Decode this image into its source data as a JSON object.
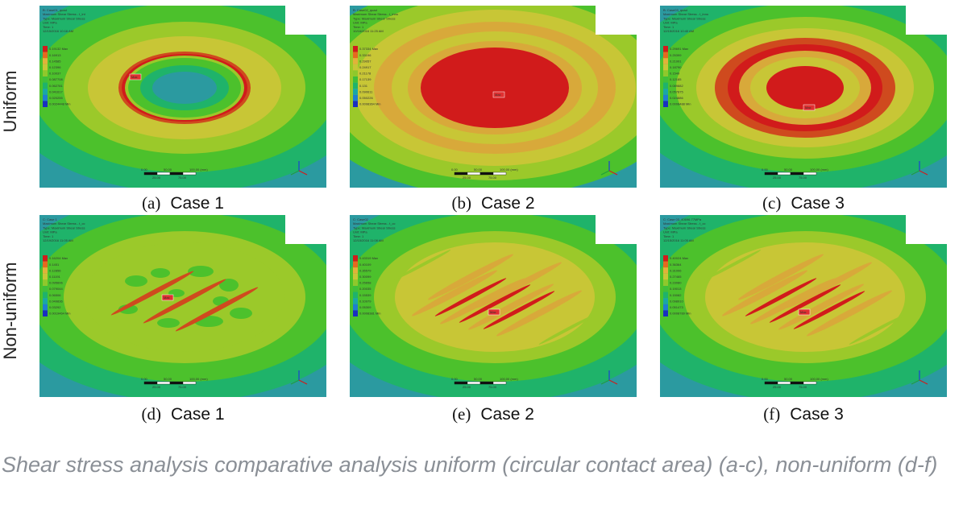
{
  "row_labels": {
    "top": "Uniform",
    "bottom": "Non-uniform"
  },
  "panels": [
    {
      "id": "a",
      "letter": "(a)",
      "case": "Case 1",
      "header": [
        "B: Case01_quad",
        "Maximum Shear Stress - t_int",
        "Type: Maximum Shear Stress",
        "Unit: MPa",
        "Time: 1",
        "12/15/2016 10:16 AM"
      ],
      "legend_values": [
        "0.19132 Max",
        "0.16913",
        "0.14585",
        "0.12396",
        "0.10037",
        "0.087708",
        "0.062781",
        "0.041617",
        "0.020255",
        "0.0024448 Min"
      ],
      "scale_labels": [
        "0.00",
        "50.00",
        "100.00 (mm)",
        "25.00",
        "75.00"
      ],
      "max_label": "Max"
    },
    {
      "id": "b",
      "letter": "(b)",
      "case": "Case 2",
      "header": [
        "B: Case02_quad",
        "Maximum Shear Stress - t_inno",
        "Type: Maximum Shear Stress",
        "Unit: MPa",
        "Time: 1",
        "10/16/2016 11:25 AM"
      ],
      "legend_values": [
        "0.37334 Max",
        "0.33196",
        "0.29057",
        "0.24917",
        "0.21178",
        "0.17139",
        "0.131",
        "0.090611",
        "0.050226",
        "0.0098364 Min"
      ],
      "scale_labels": [
        "0.00",
        "50.00",
        "100.00 (mm)",
        "25.00",
        "75.00"
      ],
      "max_label": "Max"
    },
    {
      "id": "c",
      "letter": "(c)",
      "case": "Case 3",
      "header": [
        "B: Case03_quad",
        "Maximum Shear Stress - t_inno",
        "Type: Maximum Shear Stress",
        "Unit: MPa",
        "Time: 1",
        "12/15/2016 10:40 AM"
      ],
      "legend_values": [
        "0.29691 Max",
        "0.25399",
        "0.21991",
        "0.18790",
        "0.1549",
        "0.12185",
        "0.089882",
        "0.057875",
        "0.024886",
        "0.0008488 Min"
      ],
      "scale_labels": [
        "0.00",
        "50.00",
        "100.00 (mm)",
        "25.00",
        "75.00"
      ],
      "max_label": "Max"
    },
    {
      "id": "d",
      "letter": "(d)",
      "case": "Case 1",
      "header": [
        "C: Case 1",
        "Maximum Shear Stress - t_cc",
        "Type: Maximum Shear Stress",
        "Unit: MPa",
        "Time: 1",
        "12/19/2016 11:05 AM"
      ],
      "legend_values": [
        "0.16204 Max",
        "0.1451",
        "0.12856",
        "0.11191",
        "0.095606",
        "0.079044",
        "0.06506",
        "0.049836",
        "0.03292",
        "0.0019464 Min"
      ],
      "scale_labels": [
        "0.00",
        "50.00",
        "100.00 (mm)",
        "25.00",
        "75.00"
      ],
      "max_label": "Max"
    },
    {
      "id": "e",
      "letter": "(e)",
      "case": "Case 2",
      "header": [
        "C: Case02",
        "Maximum Shear Stress - t_cc",
        "Type: Maximum Shear Stress",
        "Unit: MPa",
        "Time: 1",
        "12/15/2016 11:08 AM"
      ],
      "legend_values": [
        "0.43319 Max",
        "0.40109",
        "0.35579",
        "0.30099",
        "0.25658",
        "0.20035",
        "0.15539",
        "0.10979",
        "0.05309",
        "0.0008381 Min"
      ],
      "scale_labels": [
        "0.00",
        "50.00",
        "100.00 (mm)",
        "25.00",
        "75.00"
      ],
      "max_label": "Max"
    },
    {
      "id": "f",
      "letter": "(f)",
      "case": "Case 3",
      "header": [
        "C: Case 03_40696.77MPa",
        "Maximum Shear Stress - t_cc",
        "Type: Maximum Shear Stress",
        "Unit: MPa",
        "Time: 1",
        "12/15/2016 11:05 AM"
      ],
      "legend_values": [
        "0.40024 Max",
        "0.36364",
        "0.31006",
        "0.27465",
        "0.23080",
        "0.19013",
        "0.15082",
        "0.098910",
        "0.051473",
        "0.0008789 Min"
      ],
      "scale_labels": [
        "0.00",
        "50.00",
        "100.00 (mm)",
        "25.00",
        "75.00"
      ],
      "max_label": "Max"
    }
  ],
  "figure_caption": "Shear stress analysis comparative analysis uniform (circular contact area) (a-c), non-uniform (d-f)",
  "colors": {
    "background": "#ffffff",
    "caption_gray": "#8a8f96",
    "contour": [
      "#2b9aa0",
      "#1fb36a",
      "#4cc12c",
      "#9bc92a",
      "#c8c636",
      "#d8a93a",
      "#cf4a1e",
      "#d11b1b"
    ]
  }
}
